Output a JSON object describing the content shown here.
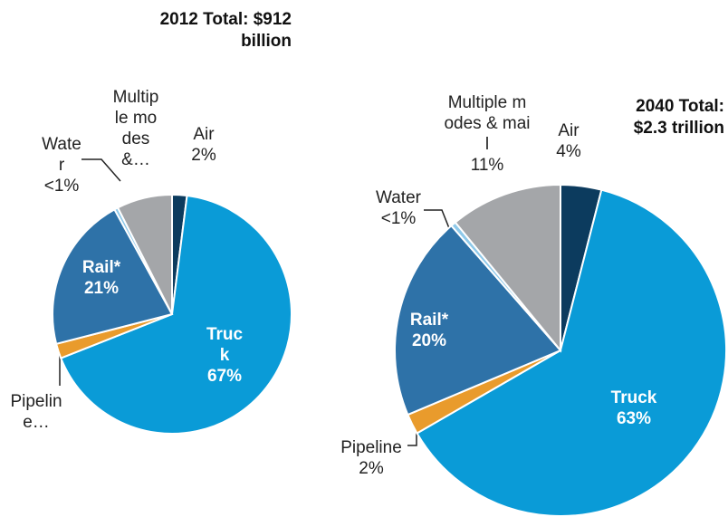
{
  "chart_data": [
    {
      "type": "pie",
      "title": "2012 Total: $912 billion",
      "categories": [
        "Air",
        "Truck",
        "Pipeline…",
        "Rail*",
        "Water",
        "Multiple modes &…"
      ],
      "values": [
        2,
        67,
        2,
        21,
        0.5,
        7.5
      ],
      "value_labels": [
        "2%",
        "67%",
        null,
        "21%",
        "<1%",
        null
      ],
      "colors": [
        "#0c3b5e",
        "#0a9bd7",
        "#e99b2c",
        "#2e72a8",
        "#8ec9ea",
        "#a4a6a9"
      ]
    },
    {
      "type": "pie",
      "title": "2040 Total: $2.3 trillion",
      "categories": [
        "Air",
        "Truck",
        "Pipeline",
        "Rail*",
        "Water",
        "Multiple modes & mail"
      ],
      "values": [
        4,
        63,
        2,
        20,
        0.5,
        11
      ],
      "value_labels": [
        "4%",
        "63%",
        "2%",
        "20%",
        "<1%",
        "11%"
      ],
      "colors": [
        "#0c3b5e",
        "#0a9bd7",
        "#e99b2c",
        "#2e72a8",
        "#8ec9ea",
        "#a4a6a9"
      ]
    }
  ]
}
